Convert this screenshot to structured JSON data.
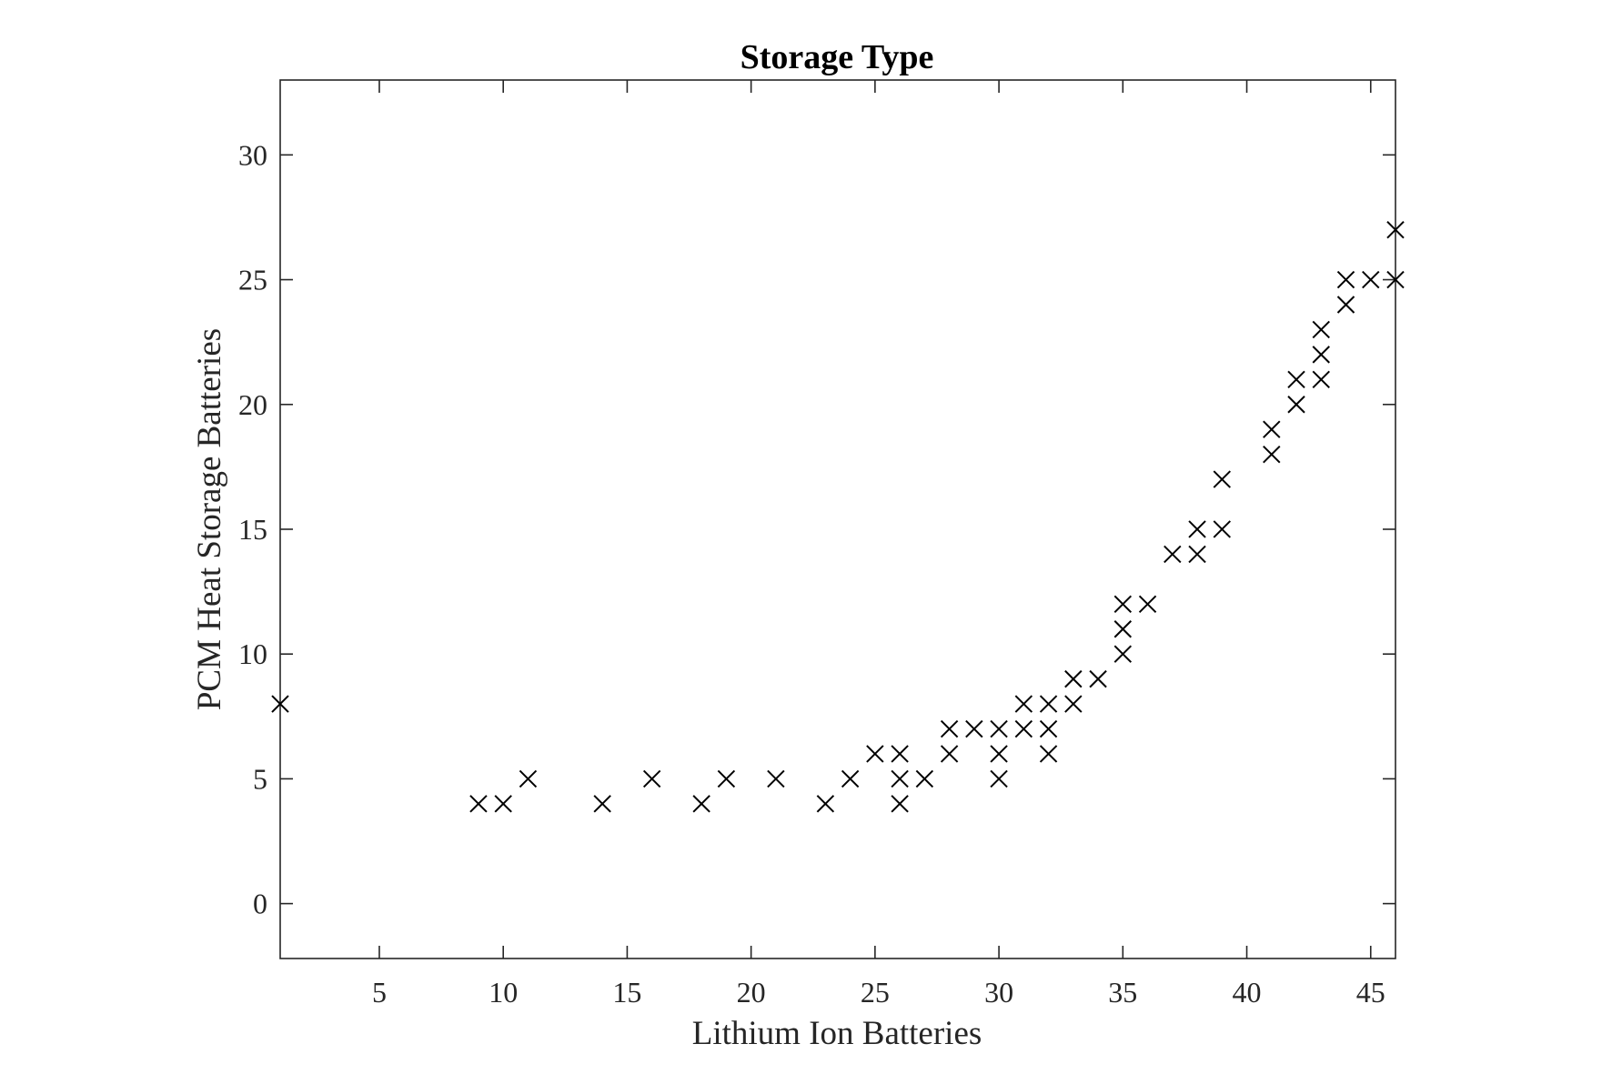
{
  "chart_data": {
    "type": "scatter",
    "title": "Storage Type",
    "xlabel": "Lithium Ion Batteries",
    "ylabel": "PCM Heat Storage Batteries",
    "xlim": [
      1,
      46
    ],
    "ylim": [
      -2.2,
      33
    ],
    "xticks": [
      5,
      10,
      15,
      20,
      25,
      30,
      35,
      40,
      45
    ],
    "yticks": [
      0,
      5,
      10,
      15,
      20,
      25,
      30
    ],
    "marker": "x",
    "grid": false,
    "points": [
      [
        1,
        8
      ],
      [
        9,
        4
      ],
      [
        10,
        4
      ],
      [
        11,
        5
      ],
      [
        14,
        4
      ],
      [
        16,
        5
      ],
      [
        18,
        4
      ],
      [
        19,
        5
      ],
      [
        21,
        5
      ],
      [
        23,
        4
      ],
      [
        24,
        5
      ],
      [
        25,
        6
      ],
      [
        26,
        6
      ],
      [
        26,
        5
      ],
      [
        26,
        4
      ],
      [
        27,
        5
      ],
      [
        28,
        7
      ],
      [
        28,
        6
      ],
      [
        29,
        7
      ],
      [
        30,
        7
      ],
      [
        30,
        6
      ],
      [
        30,
        5
      ],
      [
        31,
        8
      ],
      [
        31,
        7
      ],
      [
        32,
        8
      ],
      [
        32,
        7
      ],
      [
        32,
        6
      ],
      [
        33,
        9
      ],
      [
        33,
        8
      ],
      [
        34,
        9
      ],
      [
        35,
        12
      ],
      [
        35,
        11
      ],
      [
        35,
        10
      ],
      [
        36,
        12
      ],
      [
        37,
        14
      ],
      [
        38,
        15
      ],
      [
        38,
        14
      ],
      [
        39,
        17
      ],
      [
        39,
        15
      ],
      [
        41,
        19
      ],
      [
        41,
        18
      ],
      [
        42,
        21
      ],
      [
        42,
        20
      ],
      [
        43,
        23
      ],
      [
        43,
        22
      ],
      [
        43,
        21
      ],
      [
        44,
        25
      ],
      [
        44,
        24
      ],
      [
        45,
        25
      ],
      [
        46,
        27
      ],
      [
        46,
        25
      ]
    ]
  }
}
